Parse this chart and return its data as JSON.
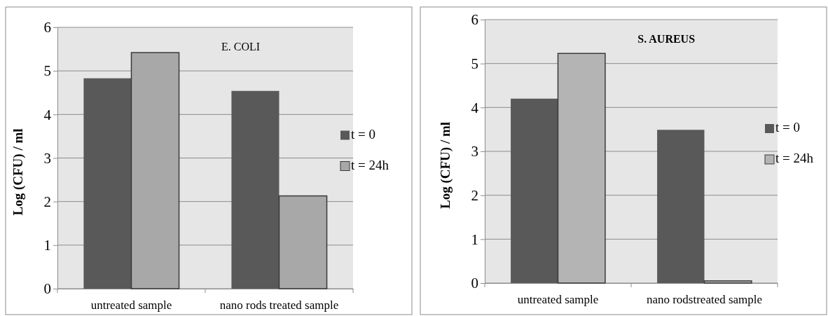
{
  "chart_data": [
    {
      "type": "bar",
      "title": "E. COLI",
      "ylabel": "Log (CFU) / ml",
      "categories": [
        "untreated sample",
        "nano rods treated sample"
      ],
      "series": [
        {
          "name": "t = 0",
          "color": "#595959",
          "values": [
            4.83,
            4.54
          ]
        },
        {
          "name": "t = 24h",
          "color": "#a8a8a8",
          "values": [
            5.42,
            2.13
          ]
        }
      ],
      "ylim": [
        0,
        6
      ],
      "yticks": [
        0,
        1,
        2,
        3,
        4,
        5,
        6
      ],
      "grid": "y",
      "legend": "right"
    },
    {
      "type": "bar",
      "title": "S. AUREUS",
      "ylabel": "Log (CFU) / ml",
      "categories": [
        "untreated sample",
        "nano rodstreated sample"
      ],
      "series": [
        {
          "name": "t = 0",
          "color": "#595959",
          "values": [
            4.2,
            3.49
          ]
        },
        {
          "name": "t = 24h",
          "color": "#b4b4b4",
          "values": [
            5.23,
            0.05
          ]
        }
      ],
      "ylim": [
        0,
        6
      ],
      "yticks": [
        0,
        1,
        2,
        3,
        4,
        5,
        6
      ],
      "grid": "y",
      "legend": "right"
    }
  ]
}
